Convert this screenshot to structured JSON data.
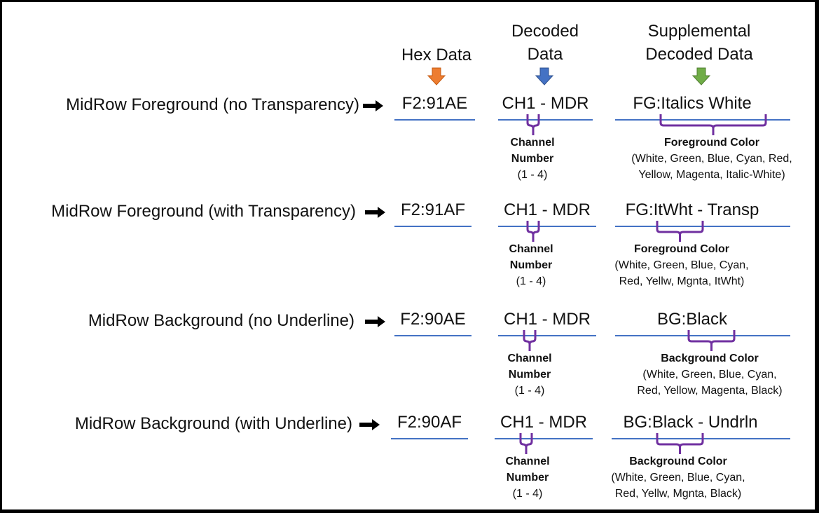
{
  "headers": {
    "hex": "Hex Data",
    "decoded_line1": "Decoded",
    "decoded_line2": "Data",
    "supp_line1": "Supplemental",
    "supp_line2": "Decoded Data"
  },
  "colors": {
    "hex_arrow": "#ED7D31",
    "decoded_arrow": "#4472C4",
    "supp_arrow": "#70AD47",
    "underline": "#4472C4",
    "brace": "#7030A0"
  },
  "rows": [
    {
      "label": "MidRow Foreground (no Transparency)",
      "hex": "F2:91AE",
      "decoded": "CH1 - MDR",
      "channel_title_line1": "Channel",
      "channel_title_line2": "Number",
      "channel_range": "(1 - 4)",
      "supp": "FG:Italics  White",
      "note_title": "Foreground Color",
      "note_line1": "(White, Green, Blue, Cyan, Red,",
      "note_line2": "Yellow, Magenta, Italic-White)"
    },
    {
      "label": "MidRow Foreground (with Transparency)",
      "hex": "F2:91AF",
      "decoded": "CH1 - MDR",
      "channel_title_line1": "Channel",
      "channel_title_line2": "Number",
      "channel_range": "(1 - 4)",
      "supp": "FG:ItWht - Transp",
      "note_title": "Foreground Color",
      "note_line1": "(White, Green, Blue, Cyan,",
      "note_line2": "Red, Yellw, Mgnta, ItWht)"
    },
    {
      "label": "MidRow Background (no Underline)",
      "hex": "F2:90AE",
      "decoded": "CH1 - MDR",
      "channel_title_line1": "Channel",
      "channel_title_line2": "Number",
      "channel_range": "(1 - 4)",
      "supp": "BG:Black",
      "note_title": "Background Color",
      "note_line1": "(White, Green, Blue, Cyan,",
      "note_line2": "Red, Yellow, Magenta, Black)"
    },
    {
      "label": "MidRow Background (with Underline)",
      "hex": "F2:90AF",
      "decoded": "CH1 - MDR",
      "channel_title_line1": "Channel",
      "channel_title_line2": "Number",
      "channel_range": "(1 - 4)",
      "supp": "BG:Black - Undrln",
      "note_title": "Background Color",
      "note_line1": "(White, Green, Blue, Cyan,",
      "note_line2": "Red, Yellw, Mgnta, Black)"
    }
  ]
}
